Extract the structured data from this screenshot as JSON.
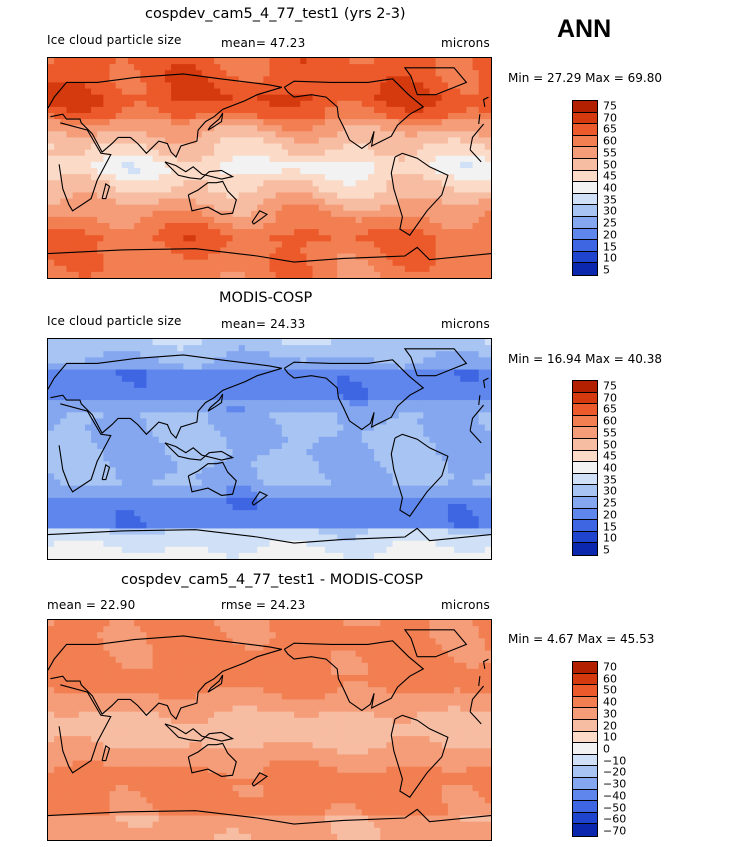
{
  "season": "ANN",
  "panels": [
    {
      "title": "cospdev_cam5_4_77_test1 (yrs 2-3)",
      "left_label": "Ice cloud particle size",
      "center_label": "mean=  47.23",
      "right_label": "microns",
      "minmax": "Min =  27.29 Max =  69.80",
      "colorbar_ticks": [
        "75",
        "70",
        "65",
        "60",
        "55",
        "50",
        "45",
        "40",
        "35",
        "30",
        "25",
        "20",
        "15",
        "10",
        "5"
      ],
      "field": {
        "mean": 47.23,
        "min": 27.29,
        "max": 69.8
      }
    },
    {
      "title": "MODIS-COSP",
      "left_label": "Ice cloud particle size",
      "center_label": "mean=  24.33",
      "right_label": "microns",
      "minmax": "Min =  16.94 Max =  40.38",
      "colorbar_ticks": [
        "75",
        "70",
        "65",
        "60",
        "55",
        "50",
        "45",
        "40",
        "35",
        "30",
        "25",
        "20",
        "15",
        "10",
        "5"
      ],
      "field": {
        "mean": 24.33,
        "min": 16.94,
        "max": 40.38
      }
    },
    {
      "title": "cospdev_cam5_4_77_test1 - MODIS-COSP",
      "left_label": "mean =  22.90",
      "center_label": "rmse =  24.23",
      "right_label": "microns",
      "minmax": "Min =   4.67 Max =  45.53",
      "colorbar_ticks": [
        "70",
        "60",
        "50",
        "40",
        "30",
        "20",
        "10",
        "0",
        "−10",
        "−20",
        "−30",
        "−40",
        "−50",
        "−60",
        "−70"
      ],
      "field": {
        "mean": 22.9,
        "rmse": 24.23,
        "min": 4.67,
        "max": 45.53
      }
    }
  ],
  "colors": {
    "scale": [
      "#8b0000",
      "#b22000",
      "#d53a0f",
      "#ec5a2b",
      "#f27f52",
      "#f59c79",
      "#f7bda2",
      "#fbdbc8",
      "#f2f2f2",
      "#cfe0f7",
      "#a8c4f2",
      "#84a7ef",
      "#5f86ec",
      "#3e66e3",
      "#1f45cf",
      "#0a27ad",
      "#00148a"
    ]
  }
}
